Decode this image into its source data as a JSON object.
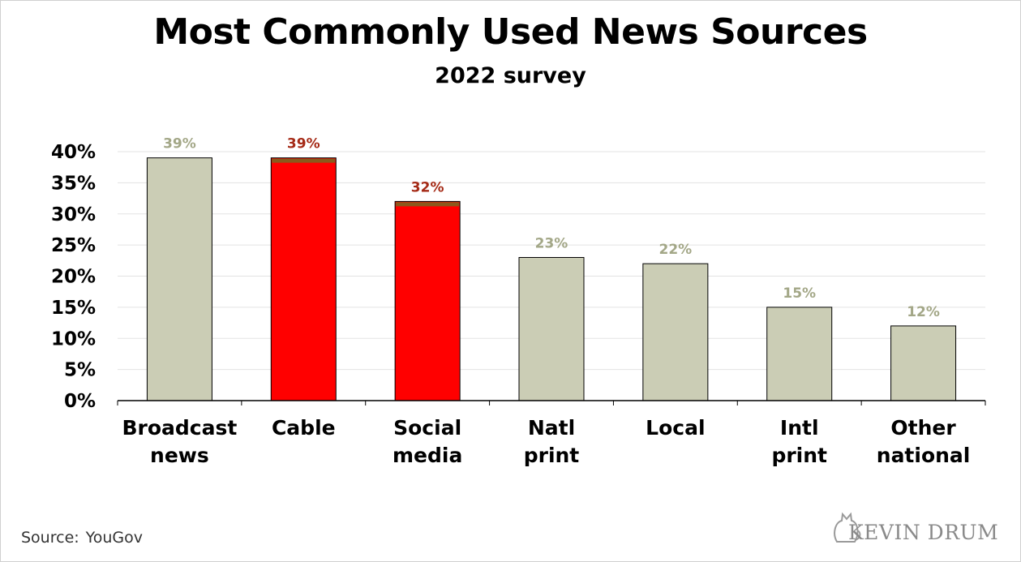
{
  "chart_data": {
    "type": "bar",
    "title": "Most Commonly Used News Sources",
    "subtitle": "2022 survey",
    "categories": [
      [
        "Broadcast",
        "news"
      ],
      [
        "Cable"
      ],
      [
        "Social",
        "media"
      ],
      [
        "Natl",
        "print"
      ],
      [
        "Local"
      ],
      [
        "Intl",
        "print"
      ],
      [
        "Other",
        "national"
      ]
    ],
    "values": [
      39,
      39,
      32,
      23,
      22,
      15,
      12
    ],
    "data_labels": [
      "39%",
      "39%",
      "32%",
      "23%",
      "22%",
      "15%",
      "12%"
    ],
    "highlighted": [
      false,
      true,
      true,
      false,
      false,
      false,
      false
    ],
    "ylim": [
      0,
      40
    ],
    "yticks": [
      0,
      5,
      10,
      15,
      20,
      25,
      30,
      35,
      40
    ],
    "ytick_labels": [
      "0%",
      "5%",
      "10%",
      "15%",
      "20%",
      "25%",
      "30%",
      "35%",
      "40%"
    ],
    "grid": true,
    "colors": {
      "bar": "#cbcdb5",
      "highlight_bar": "#ff0000",
      "label": "#a3a787",
      "highlight_label": "#a52a16",
      "band": "#8a5a1c"
    }
  },
  "footer": {
    "source_label": "Source:",
    "source_value": "YouGov"
  },
  "logo": {
    "text": "KEVIN DRUM",
    "icon": "cat-icon"
  }
}
